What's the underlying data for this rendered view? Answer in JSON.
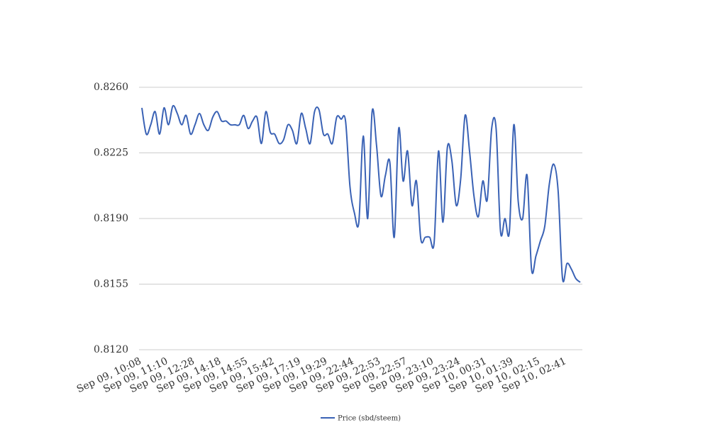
{
  "chart_data": {
    "type": "line",
    "categories": [
      "Sep 09, 10:08",
      null,
      null,
      null,
      null,
      null,
      "Sep 09, 11:10",
      null,
      null,
      null,
      null,
      null,
      "Sep 09, 12:28",
      null,
      null,
      null,
      null,
      null,
      "Sep 09, 14:18",
      null,
      null,
      null,
      null,
      null,
      "Sep 09, 14:55",
      null,
      null,
      null,
      null,
      null,
      "Sep 09, 15:42",
      null,
      null,
      null,
      null,
      null,
      "Sep 09, 17:19",
      null,
      null,
      null,
      null,
      null,
      "Sep 09, 19:29",
      null,
      null,
      null,
      null,
      null,
      "Sep 09, 22:44",
      null,
      null,
      null,
      null,
      null,
      "Sep 09, 22:53",
      null,
      null,
      null,
      null,
      null,
      "Sep 09, 22:57",
      null,
      null,
      null,
      null,
      null,
      "Sep 09, 23:10",
      null,
      null,
      null,
      null,
      null,
      "Sep 09, 23:24",
      null,
      null,
      null,
      null,
      null,
      "Sep 10, 00:31",
      null,
      null,
      null,
      null,
      null,
      "Sep 10, 01:39",
      null,
      null,
      null,
      null,
      null,
      "Sep 10, 02:15",
      null,
      null,
      null,
      null,
      null,
      "Sep 10, 02:41",
      null,
      null,
      null
    ],
    "series": [
      {
        "name": "Price (sbd/steem)",
        "color": "#3a62b5",
        "values": [
          0.8249,
          0.8235,
          0.824,
          0.8247,
          0.8235,
          0.8249,
          0.824,
          0.825,
          0.8246,
          0.824,
          0.8245,
          0.8235,
          0.824,
          0.8246,
          0.824,
          0.8237,
          0.8244,
          0.8247,
          0.8242,
          0.8242,
          0.824,
          0.824,
          0.824,
          0.8245,
          0.8238,
          0.8242,
          0.8244,
          0.823,
          0.8247,
          0.8236,
          0.8235,
          0.823,
          0.8232,
          0.824,
          0.8237,
          0.823,
          0.8246,
          0.8238,
          0.823,
          0.8247,
          0.8248,
          0.8235,
          0.8235,
          0.823,
          0.8244,
          0.8243,
          0.8242,
          0.8207,
          0.8193,
          0.8188,
          0.8234,
          0.819,
          0.8247,
          0.8229,
          0.8202,
          0.8213,
          0.822,
          0.818,
          0.8238,
          0.821,
          0.8226,
          0.8197,
          0.821,
          0.8179,
          0.818,
          0.818,
          0.8177,
          0.8226,
          0.8188,
          0.8228,
          0.8221,
          0.8197,
          0.8211,
          0.8245,
          0.8226,
          0.8202,
          0.8191,
          0.821,
          0.82,
          0.8238,
          0.8238,
          0.8183,
          0.819,
          0.8183,
          0.824,
          0.8199,
          0.819,
          0.8213,
          0.8163,
          0.817,
          0.8178,
          0.8186,
          0.8208,
          0.8219,
          0.8205,
          0.8158,
          0.8166,
          0.8163,
          0.8158,
          0.8156
        ]
      }
    ],
    "ylim": [
      0.812,
      0.826
    ],
    "yticks": [
      {
        "value": 0.812,
        "label": "0.8120"
      },
      0.8155,
      {
        "value": 0.819,
        "label": "0.8190"
      },
      0.8225,
      {
        "value": 0.826,
        "label": "0.8260"
      }
    ],
    "grid": true
  }
}
